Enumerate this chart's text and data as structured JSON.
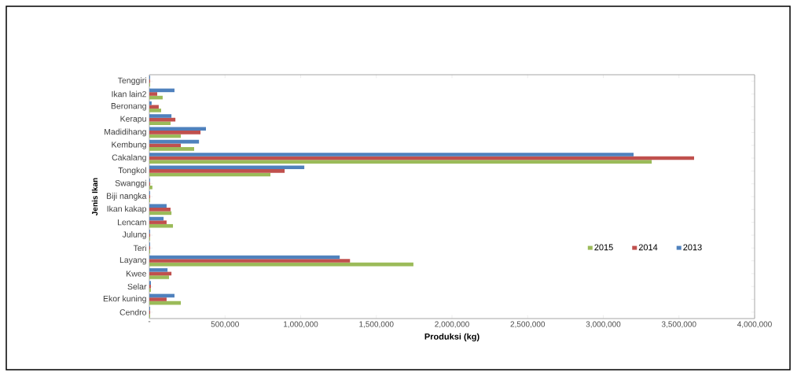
{
  "chart_data": {
    "type": "bar",
    "orientation": "horizontal",
    "xlabel": "Produksi (kg)",
    "ylabel": "Jenis Ikan",
    "categories": [
      "Tenggiri",
      "Ikan lain2",
      "Beronang",
      "Kerapu",
      "Madidihang",
      "Kembung",
      "Cakalang",
      "Tongkol",
      "Swanggi",
      "Biji nangka",
      "Ikan kakap",
      "Lencam",
      "Julung",
      "Teri",
      "Layang",
      "Kwee",
      "Selar",
      "Ekor kuning",
      "Cendro"
    ],
    "series": [
      {
        "name": "2015",
        "color": "#9bbb59",
        "values": [
          5000,
          88000,
          78000,
          140000,
          208000,
          296000,
          3320000,
          800000,
          20000,
          5000,
          146000,
          156000,
          5000,
          5000,
          1745000,
          130000,
          10000,
          208000,
          5000
        ]
      },
      {
        "name": "2014",
        "color": "#c0504d",
        "values": [
          5000,
          52000,
          62000,
          172000,
          338000,
          208000,
          3600000,
          894000,
          5000,
          5000,
          140000,
          114000,
          5000,
          5000,
          1326000,
          146000,
          10000,
          114000,
          5000
        ]
      },
      {
        "name": "2013",
        "color": "#4f81bd",
        "values": [
          5000,
          166000,
          15000,
          146000,
          374000,
          328000,
          3200000,
          1024000,
          5000,
          5000,
          114000,
          94000,
          5000,
          5000,
          1258000,
          120000,
          10000,
          166000,
          5000
        ]
      }
    ],
    "xlim": [
      0,
      4000000
    ],
    "xticks": [
      {
        "value": 0,
        "label": "-"
      },
      {
        "value": 500000,
        "label": "500,000"
      },
      {
        "value": 1000000,
        "label": "1,000,000"
      },
      {
        "value": 1500000,
        "label": "1,500,000"
      },
      {
        "value": 2000000,
        "label": "2,000,000"
      },
      {
        "value": 2500000,
        "label": "2,500,000"
      },
      {
        "value": 3000000,
        "label": "3,000,000"
      },
      {
        "value": 3500000,
        "label": "3,500,000"
      },
      {
        "value": 4000000,
        "label": "4,000,000"
      }
    ],
    "legend": "right"
  }
}
